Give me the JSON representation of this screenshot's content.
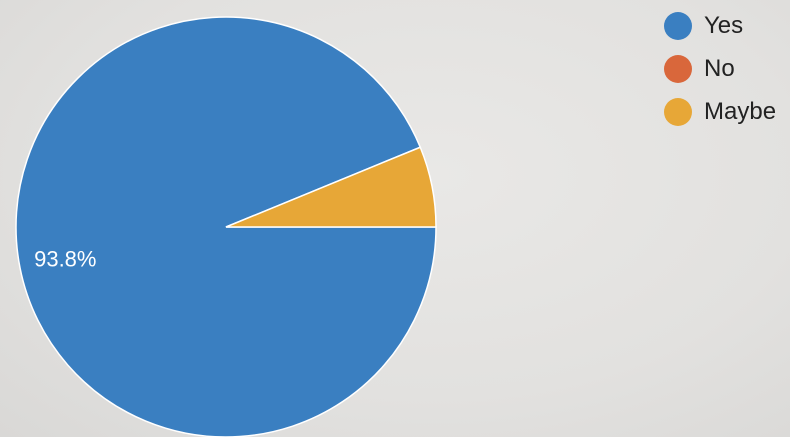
{
  "chart_data": {
    "type": "pie",
    "series": [
      {
        "name": "Yes",
        "value": 93.8,
        "color": "#3a7fc1",
        "label": "93.8%"
      },
      {
        "name": "No",
        "value": 0.0,
        "color": "#d9673b",
        "label": ""
      },
      {
        "name": "Maybe",
        "value": 6.2,
        "color": "#e7a737",
        "label": ""
      }
    ],
    "legend_position": "top-right"
  }
}
